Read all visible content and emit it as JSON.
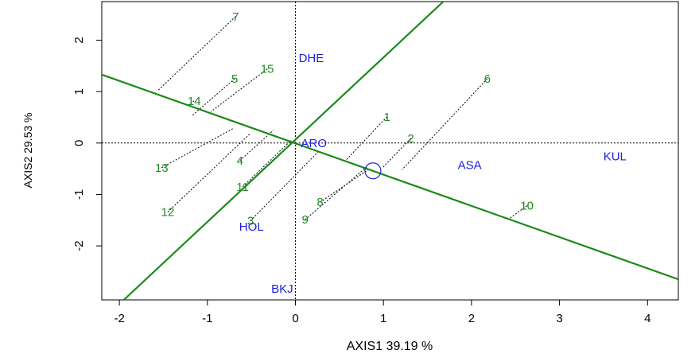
{
  "chart_data": {
    "type": "scatter",
    "title": "",
    "xlabel": "AXIS1 39.19 %",
    "ylabel": "AXIS2 29.53 %",
    "xlim": [
      -2.2,
      4.35
    ],
    "ylim": [
      -3.05,
      2.75
    ],
    "x_ticks": [
      -2,
      -1,
      0,
      1,
      2,
      3,
      4
    ],
    "y_ticks": [
      -2,
      -1,
      0,
      1,
      2
    ],
    "zero_lines": true,
    "series": [
      {
        "points": [
          {
            "label": "1",
            "x": 1.04,
            "y": 0.51
          },
          {
            "label": "2",
            "x": 1.31,
            "y": 0.09
          },
          {
            "label": "3",
            "x": -0.51,
            "y": -1.51
          },
          {
            "label": "4",
            "x": -0.63,
            "y": -0.34
          },
          {
            "label": "5",
            "x": -0.69,
            "y": 1.25
          },
          {
            "label": "6",
            "x": 2.18,
            "y": 1.25
          },
          {
            "label": "7",
            "x": -0.68,
            "y": 2.46
          },
          {
            "label": "8",
            "x": 0.28,
            "y": -1.15
          },
          {
            "label": "9",
            "x": 0.11,
            "y": -1.49
          },
          {
            "label": "10",
            "x": 2.63,
            "y": -1.22
          },
          {
            "label": "11",
            "x": -0.6,
            "y": -0.85
          },
          {
            "label": "12",
            "x": -1.45,
            "y": -1.34
          },
          {
            "label": "13",
            "x": -1.52,
            "y": -0.48
          },
          {
            "label": "14",
            "x": -1.15,
            "y": 0.82
          },
          {
            "label": "15",
            "x": -0.32,
            "y": 1.44
          }
        ]
      },
      {
        "points": [
          {
            "label": "DHE",
            "x": 0.18,
            "y": 1.65
          },
          {
            "label": "ARO",
            "x": 0.21,
            "y": 0.0
          },
          {
            "label": "ASA",
            "x": 1.98,
            "y": -0.43
          },
          {
            "label": "KUL",
            "x": 3.63,
            "y": -0.26
          },
          {
            "label": "HOL",
            "x": -0.5,
            "y": -1.63
          },
          {
            "label": "BKJ",
            "x": -0.15,
            "y": -2.83
          }
        ]
      }
    ],
    "lines": [
      {
        "from": [
          -2.2,
          1.33
        ],
        "to": [
          4.35,
          -2.65
        ]
      },
      {
        "from": [
          -1.95,
          -3.05
        ],
        "to": [
          1.68,
          2.75
        ]
      }
    ],
    "projections": [
      {
        "from": [
          1.04,
          0.51
        ],
        "to": [
          0.57,
          -0.34
        ]
      },
      {
        "from": [
          1.31,
          0.09
        ],
        "to": [
          0.99,
          -0.48
        ]
      },
      {
        "from": [
          -0.51,
          -1.51
        ],
        "to": [
          0.27,
          -0.15
        ]
      },
      {
        "from": [
          -0.63,
          -0.34
        ],
        "to": [
          -0.25,
          0.25
        ]
      },
      {
        "from": [
          -0.69,
          1.25
        ],
        "to": [
          -1.17,
          0.54
        ]
      },
      {
        "from": [
          2.18,
          1.25
        ],
        "to": [
          1.21,
          -0.52
        ]
      },
      {
        "from": [
          -0.68,
          2.46
        ],
        "to": [
          -1.57,
          1.01
        ]
      },
      {
        "from": [
          0.28,
          -1.15
        ],
        "to": [
          0.85,
          -0.49
        ]
      },
      {
        "from": [
          0.11,
          -1.49
        ],
        "to": [
          0.82,
          -0.45
        ]
      },
      {
        "from": [
          2.63,
          -1.22
        ],
        "to": [
          2.42,
          -1.48
        ]
      },
      {
        "from": [
          -0.6,
          -0.85
        ],
        "to": [
          -0.05,
          0.05
        ]
      },
      {
        "from": [
          -1.45,
          -1.34
        ],
        "to": [
          -0.51,
          0.19
        ]
      },
      {
        "from": [
          -1.52,
          -0.48
        ],
        "to": [
          -0.71,
          0.28
        ]
      },
      {
        "from": [
          -1.15,
          0.82
        ],
        "to": [
          -1.21,
          0.74
        ]
      },
      {
        "from": [
          -0.32,
          1.44
        ],
        "to": [
          -0.96,
          0.61
        ]
      }
    ],
    "circle_marker": {
      "x": 0.88,
      "y": -0.54
    },
    "colors": {
      "genotype": "#228b22",
      "environment": "#1f1fe0",
      "line": "#1a8a1a",
      "axis": "#000000"
    }
  }
}
